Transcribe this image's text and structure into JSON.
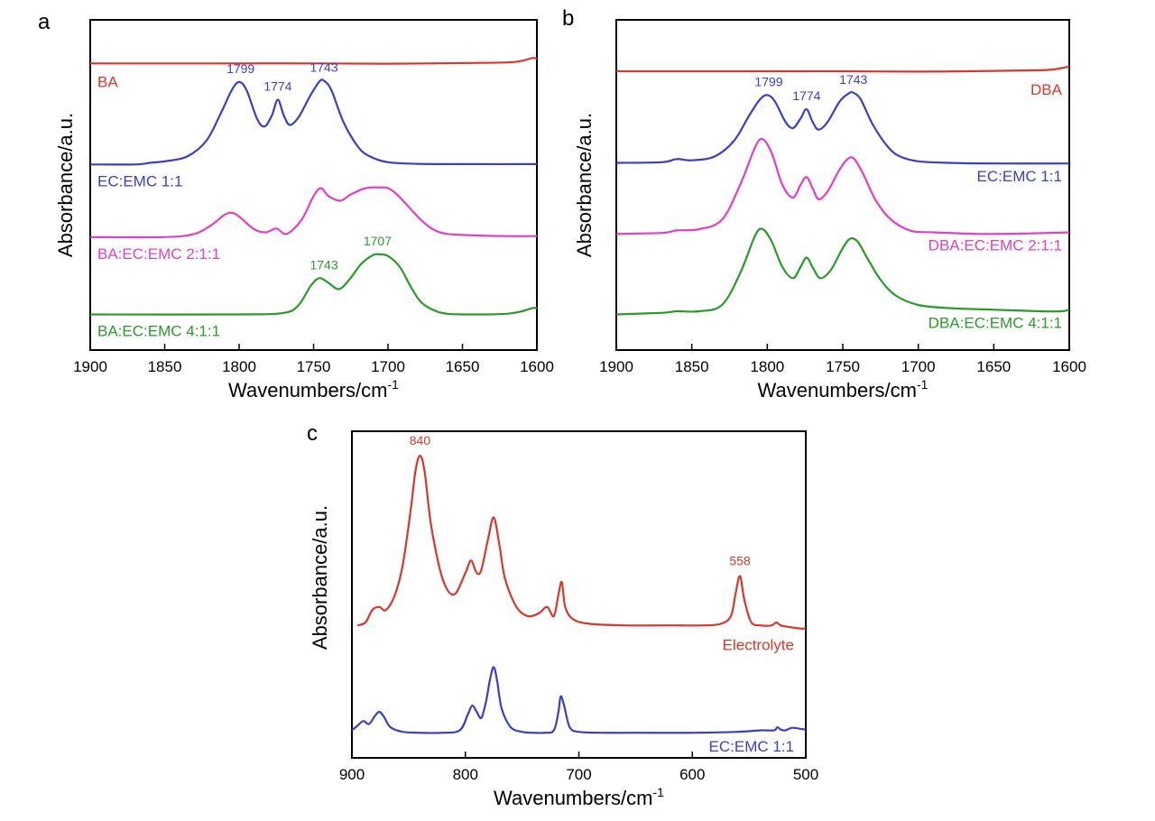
{
  "chart_data": [
    {
      "panel": "a",
      "type": "line",
      "xlabel": "Wavenumbers/cm",
      "xlabel_sup": "-1",
      "ylabel": "Absorbance/a.u.",
      "xlim": [
        1900,
        1600
      ],
      "ylim": [
        0,
        1
      ],
      "xticks": [
        1900,
        1850,
        1800,
        1750,
        1700,
        1650,
        1600
      ],
      "grid": false,
      "series": [
        {
          "name": "BA",
          "color": "#d9372b",
          "label_pos": "left",
          "x": [
            1900,
            1850,
            1800,
            1750,
            1700,
            1650,
            1620,
            1610,
            1603,
            1600
          ],
          "y": [
            0.885,
            0.885,
            0.885,
            0.885,
            0.884,
            0.886,
            0.888,
            0.893,
            0.902,
            0.9
          ],
          "peaks": []
        },
        {
          "name": "EC:EMC 1:1",
          "color": "#3a3fc9",
          "label_pos": "left",
          "x": [
            1900,
            1870,
            1860,
            1850,
            1835,
            1822,
            1812,
            1805,
            1800,
            1795,
            1788,
            1783,
            1778,
            1774,
            1770,
            1766,
            1760,
            1752,
            1746,
            1743,
            1738,
            1730,
            1720,
            1712,
            1700,
            1680,
            1650,
            1600
          ],
          "y": [
            0.565,
            0.565,
            0.57,
            0.575,
            0.59,
            0.64,
            0.73,
            0.8,
            0.826,
            0.8,
            0.71,
            0.685,
            0.72,
            0.77,
            0.72,
            0.69,
            0.715,
            0.785,
            0.828,
            0.83,
            0.8,
            0.7,
            0.62,
            0.59,
            0.572,
            0.567,
            0.566,
            0.566
          ],
          "peaks": [
            {
              "x": 1799,
              "label": "1799"
            },
            {
              "x": 1774,
              "label": "1774"
            },
            {
              "x": 1743,
              "label": "1743"
            }
          ]
        },
        {
          "name": "BA:EC:EMC 2:1:1",
          "color": "#e23fc5",
          "label_pos": "left",
          "x": [
            1900,
            1850,
            1830,
            1818,
            1810,
            1805,
            1800,
            1790,
            1782,
            1775,
            1768,
            1758,
            1750,
            1745,
            1740,
            1732,
            1725,
            1715,
            1706,
            1700,
            1694,
            1686,
            1678,
            1670,
            1660,
            1640,
            1620,
            1600
          ],
          "y": [
            0.335,
            0.335,
            0.345,
            0.375,
            0.405,
            0.412,
            0.4,
            0.36,
            0.35,
            0.362,
            0.345,
            0.39,
            0.465,
            0.49,
            0.465,
            0.45,
            0.47,
            0.49,
            0.492,
            0.49,
            0.47,
            0.43,
            0.39,
            0.36,
            0.345,
            0.34,
            0.338,
            0.338
          ],
          "peaks": []
        },
        {
          "name": "BA:EC:EMC 4:1:1",
          "color": "#2a9a2a",
          "label_pos": "left",
          "x": [
            1900,
            1800,
            1770,
            1760,
            1752,
            1746,
            1740,
            1733,
            1726,
            1718,
            1710,
            1706,
            1700,
            1692,
            1685,
            1678,
            1670,
            1660,
            1640,
            1620,
            1610,
            1603,
            1600
          ],
          "y": [
            0.09,
            0.09,
            0.095,
            0.12,
            0.18,
            0.205,
            0.19,
            0.17,
            0.2,
            0.25,
            0.278,
            0.28,
            0.275,
            0.24,
            0.18,
            0.13,
            0.105,
            0.092,
            0.09,
            0.092,
            0.1,
            0.11,
            0.11
          ],
          "peaks": [
            {
              "x": 1743,
              "label": "1743"
            },
            {
              "x": 1707,
              "label": "1707"
            }
          ]
        }
      ]
    },
    {
      "panel": "b",
      "type": "line",
      "xlabel": "Wavenumbers/cm",
      "xlabel_sup": "-1",
      "ylabel": "Absorbance/a.u.",
      "xlim": [
        1900,
        1600
      ],
      "ylim": [
        0,
        1
      ],
      "xticks": [
        1900,
        1850,
        1800,
        1750,
        1700,
        1650,
        1600
      ],
      "grid": false,
      "series": [
        {
          "name": "DBA",
          "color": "#d9372b",
          "label_pos": "right",
          "x": [
            1900,
            1850,
            1800,
            1750,
            1700,
            1650,
            1620,
            1610,
            1603,
            1600
          ],
          "y": [
            0.86,
            0.86,
            0.86,
            0.86,
            0.859,
            0.861,
            0.863,
            0.866,
            0.872,
            0.875
          ],
          "peaks": []
        },
        {
          "name": "EC:EMC 1:1",
          "color": "#3a3fc9",
          "label_pos": "right",
          "x": [
            1900,
            1870,
            1860,
            1850,
            1835,
            1822,
            1812,
            1805,
            1800,
            1795,
            1788,
            1783,
            1778,
            1774,
            1770,
            1766,
            1760,
            1752,
            1746,
            1743,
            1738,
            1730,
            1720,
            1712,
            1700,
            1680,
            1650,
            1600
          ],
          "y": [
            0.57,
            0.572,
            0.582,
            0.578,
            0.59,
            0.64,
            0.72,
            0.77,
            0.785,
            0.765,
            0.7,
            0.68,
            0.71,
            0.74,
            0.7,
            0.675,
            0.7,
            0.765,
            0.79,
            0.792,
            0.77,
            0.69,
            0.62,
            0.59,
            0.575,
            0.57,
            0.568,
            0.568
          ],
          "peaks": [
            {
              "x": 1799,
              "label": "1799"
            },
            {
              "x": 1774,
              "label": "1774"
            },
            {
              "x": 1743,
              "label": "1743"
            }
          ]
        },
        {
          "name": "DBA:EC:EMC 2:1:1",
          "color": "#e23fc5",
          "label_pos": "right",
          "x": [
            1900,
            1870,
            1860,
            1845,
            1830,
            1818,
            1808,
            1803,
            1797,
            1790,
            1783,
            1778,
            1774,
            1770,
            1766,
            1760,
            1752,
            1746,
            1742,
            1736,
            1728,
            1718,
            1705,
            1690,
            1660,
            1630,
            1600
          ],
          "y": [
            0.345,
            0.348,
            0.356,
            0.36,
            0.39,
            0.5,
            0.62,
            0.645,
            0.6,
            0.5,
            0.46,
            0.5,
            0.525,
            0.49,
            0.455,
            0.48,
            0.55,
            0.585,
            0.58,
            0.53,
            0.45,
            0.39,
            0.355,
            0.35,
            0.345,
            0.346,
            0.35
          ],
          "peaks": []
        },
        {
          "name": "DBA:EC:EMC 4:1:1",
          "color": "#2a9a2a",
          "label_pos": "right",
          "x": [
            1900,
            1870,
            1860,
            1845,
            1830,
            1818,
            1808,
            1803,
            1797,
            1790,
            1783,
            1778,
            1774,
            1770,
            1765,
            1758,
            1750,
            1745,
            1740,
            1734,
            1725,
            1715,
            1700,
            1680,
            1650,
            1620,
            1605,
            1600
          ],
          "y": [
            0.09,
            0.095,
            0.1,
            0.1,
            0.12,
            0.22,
            0.34,
            0.36,
            0.32,
            0.24,
            0.205,
            0.24,
            0.27,
            0.24,
            0.205,
            0.23,
            0.3,
            0.33,
            0.32,
            0.27,
            0.2,
            0.15,
            0.12,
            0.11,
            0.105,
            0.1,
            0.1,
            0.105
          ],
          "peaks": []
        }
      ]
    },
    {
      "panel": "c",
      "type": "line",
      "xlabel": "Wavenumbers/cm",
      "xlabel_sup": "-1",
      "ylabel": "Absorbance/a.u.",
      "xlim": [
        900,
        500
      ],
      "ylim": [
        0,
        1
      ],
      "xticks": [
        900,
        800,
        700,
        600,
        500
      ],
      "grid": false,
      "series": [
        {
          "name": "Electrolyte",
          "color": "#d9372b",
          "label_pos": "right",
          "x": [
            895,
            888,
            882,
            876,
            870,
            862,
            855,
            848,
            844,
            840,
            836,
            830,
            820,
            810,
            800,
            795,
            790,
            786,
            780,
            775,
            770,
            765,
            755,
            745,
            735,
            728,
            722,
            718,
            715,
            712,
            705,
            690,
            660,
            620,
            590,
            575,
            566,
            562,
            558,
            554,
            548,
            540,
            530,
            526,
            522,
            515,
            505,
            500
          ],
          "y": [
            0.4,
            0.41,
            0.45,
            0.46,
            0.45,
            0.5,
            0.6,
            0.78,
            0.9,
            0.95,
            0.9,
            0.72,
            0.55,
            0.5,
            0.57,
            0.61,
            0.57,
            0.58,
            0.68,
            0.75,
            0.66,
            0.55,
            0.46,
            0.43,
            0.44,
            0.46,
            0.43,
            0.5,
            0.54,
            0.46,
            0.42,
            0.405,
            0.4,
            0.4,
            0.4,
            0.405,
            0.43,
            0.5,
            0.56,
            0.48,
            0.41,
            0.4,
            0.4,
            0.41,
            0.4,
            0.395,
            0.39,
            0.39
          ],
          "peaks": [
            {
              "x": 840,
              "label": "840"
            },
            {
              "x": 558,
              "label": "558"
            }
          ]
        },
        {
          "name": "EC:EMC 1:1",
          "color": "#3a3fc9",
          "label_pos": "right",
          "x": [
            900,
            895,
            890,
            885,
            880,
            876,
            872,
            866,
            855,
            840,
            820,
            805,
            798,
            794,
            790,
            786,
            782,
            778,
            775,
            772,
            768,
            760,
            750,
            740,
            730,
            722,
            718,
            716,
            713,
            708,
            700,
            680,
            650,
            600,
            560,
            540,
            528,
            525,
            522,
            518,
            512,
            505,
            500
          ],
          "y": [
            0.06,
            0.075,
            0.09,
            0.08,
            0.105,
            0.12,
            0.105,
            0.07,
            0.055,
            0.052,
            0.052,
            0.06,
            0.11,
            0.14,
            0.12,
            0.1,
            0.15,
            0.23,
            0.265,
            0.22,
            0.13,
            0.07,
            0.055,
            0.052,
            0.052,
            0.06,
            0.12,
            0.17,
            0.14,
            0.07,
            0.055,
            0.052,
            0.052,
            0.052,
            0.055,
            0.06,
            0.06,
            0.07,
            0.062,
            0.06,
            0.068,
            0.065,
            0.062
          ],
          "peaks": []
        }
      ]
    }
  ]
}
